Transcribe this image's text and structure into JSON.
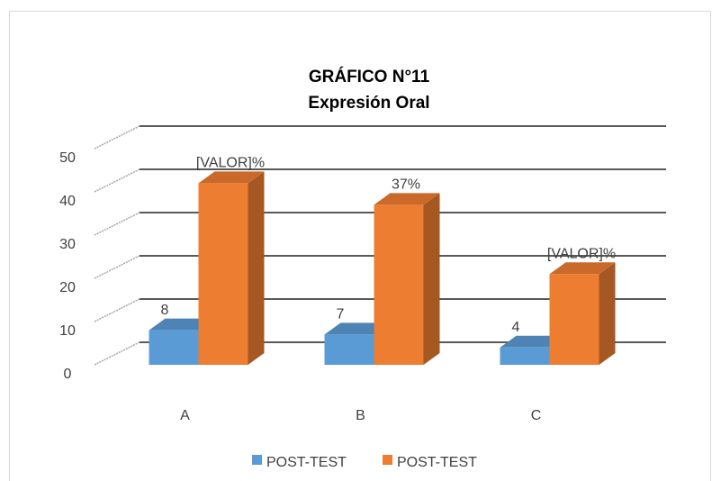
{
  "chart_data": {
    "type": "bar3d",
    "title": "GRÁFICO N°11",
    "subtitle": "Expresión Oral",
    "categories": [
      "A",
      "B",
      "C"
    ],
    "series": [
      {
        "name": "POST-TEST",
        "color": "#5b9bd5",
        "values": [
          8,
          7,
          4
        ]
      },
      {
        "name": "POST-TEST",
        "color": "#ed7d31",
        "values": [
          42,
          37,
          21
        ],
        "value_labels": [
          "[VALOR]%",
          "37%",
          "[VALOR]%"
        ]
      }
    ],
    "ylim": [
      0,
      50
    ],
    "yticks": [
      0,
      10,
      20,
      30,
      40,
      50
    ],
    "grid": true,
    "legend": "bottom"
  }
}
